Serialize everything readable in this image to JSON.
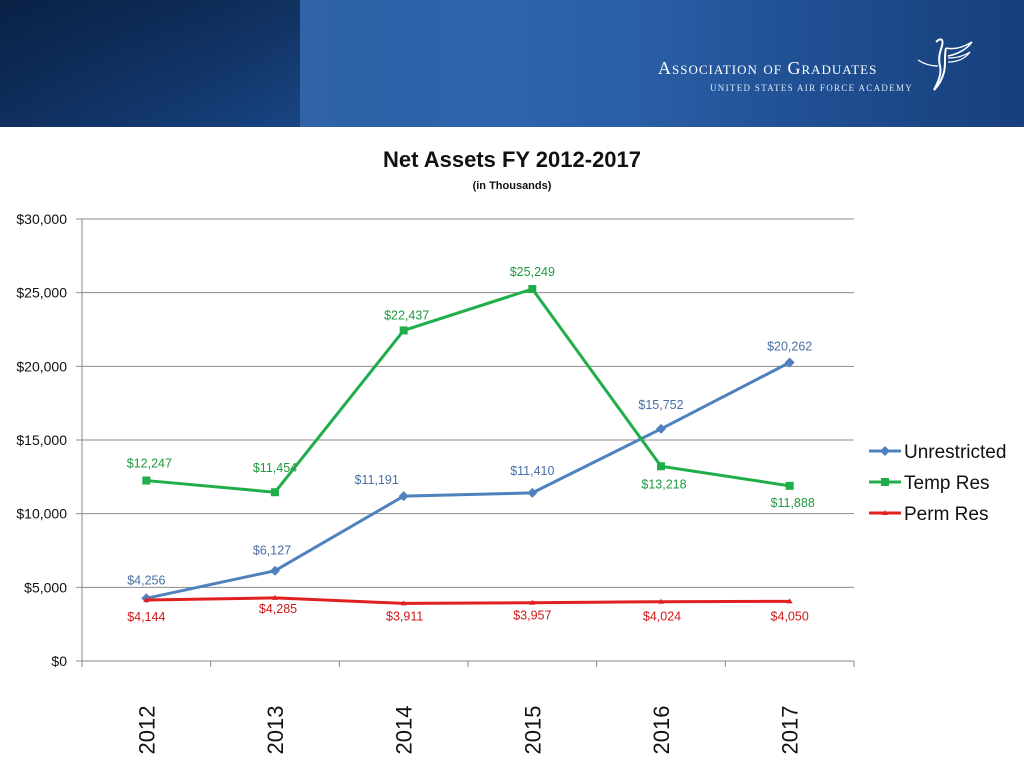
{
  "header": {
    "org_name": "Association of Graduates",
    "org_subtitle": "UNITED STATES AIR FORCE ACADEMY",
    "emblem_icon": "falcon-emblem-icon"
  },
  "chart_data": {
    "type": "line",
    "title": "Net Assets FY 2012-2017",
    "subtitle": "(in Thousands)",
    "categories": [
      "2012",
      "2013",
      "2014",
      "2015",
      "2016",
      "2017"
    ],
    "ylim": [
      0,
      30000
    ],
    "yticks": [
      0,
      5000,
      10000,
      15000,
      20000,
      25000,
      30000
    ],
    "ytick_labels": [
      "$0",
      "$5,000",
      "$10,000",
      "$15,000",
      "$20,000",
      "$25,000",
      "$30,000"
    ],
    "grid": true,
    "legend_position": "right",
    "series": [
      {
        "name": "Unrestricted",
        "color": "#4f81bd",
        "label_color": "#4a6fa5",
        "marker": "diamond",
        "values": [
          4256,
          6127,
          11191,
          11410,
          15752,
          20262
        ],
        "labels": [
          "$4,256",
          "$6,127",
          "$11,191",
          "$11,410",
          "$15,752",
          "$20,262"
        ]
      },
      {
        "name": "Temp Res",
        "color": "#1fae4a",
        "label_color": "#1d9a3f",
        "marker": "square",
        "values": [
          12247,
          11454,
          22437,
          25249,
          13218,
          11888
        ],
        "labels": [
          "$12,247",
          "$11,454",
          "$22,437",
          "$25,249",
          "$13,218",
          "$11,888"
        ]
      },
      {
        "name": "Perm Res",
        "color": "#e02020",
        "label_color": "#d01818",
        "marker": "triangle",
        "values": [
          4144,
          4285,
          3911,
          3957,
          4024,
          4050
        ],
        "labels": [
          "$4,144",
          "$4,285",
          "$3,911",
          "$3,957",
          "$4,024",
          "$4,050"
        ]
      }
    ]
  }
}
